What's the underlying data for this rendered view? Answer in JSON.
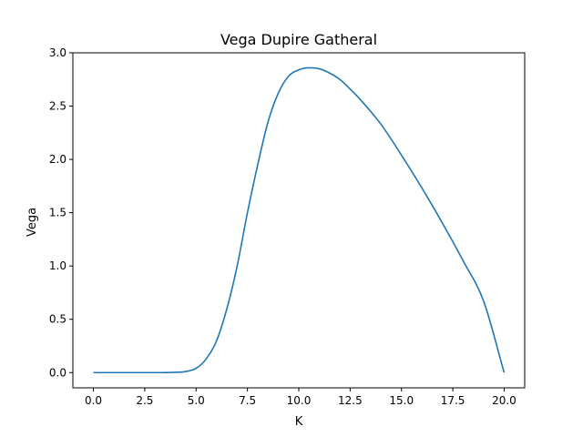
{
  "chart_data": {
    "type": "line",
    "title": "Vega Dupire Gatheral",
    "xlabel": "K",
    "ylabel": "Vega",
    "xlim": [
      -1.0,
      21.0
    ],
    "ylim": [
      -0.143,
      3.0
    ],
    "grid": false,
    "xticks": [
      0,
      2.5,
      5,
      7.5,
      10,
      12.5,
      15,
      17.5,
      20
    ],
    "xtick_labels": [
      "0.0",
      "2.5",
      "5.0",
      "7.5",
      "10.0",
      "12.5",
      "15.0",
      "17.5",
      "20.0"
    ],
    "yticks": [
      0,
      0.5,
      1,
      1.5,
      2,
      2.5,
      3
    ],
    "ytick_labels": [
      "0.0",
      "0.5",
      "1.0",
      "1.5",
      "2.0",
      "2.5",
      "3.0"
    ],
    "series": [
      {
        "color": "#1f77b4",
        "x": [
          0,
          1,
          2,
          3,
          4,
          4.5,
          5,
          5.5,
          6,
          6.5,
          7,
          7.5,
          8,
          8.5,
          9,
          9.5,
          10,
          10.5,
          11,
          11.5,
          12,
          12.5,
          13,
          14,
          15,
          16,
          17,
          18,
          19,
          20
        ],
        "y": [
          0,
          0,
          0,
          0,
          0.003,
          0.01,
          0.04,
          0.13,
          0.3,
          0.6,
          1.0,
          1.5,
          1.95,
          2.35,
          2.62,
          2.78,
          2.84,
          2.86,
          2.85,
          2.81,
          2.75,
          2.66,
          2.56,
          2.33,
          2.04,
          1.73,
          1.4,
          1.05,
          0.67,
          0.0
        ]
      }
    ]
  }
}
